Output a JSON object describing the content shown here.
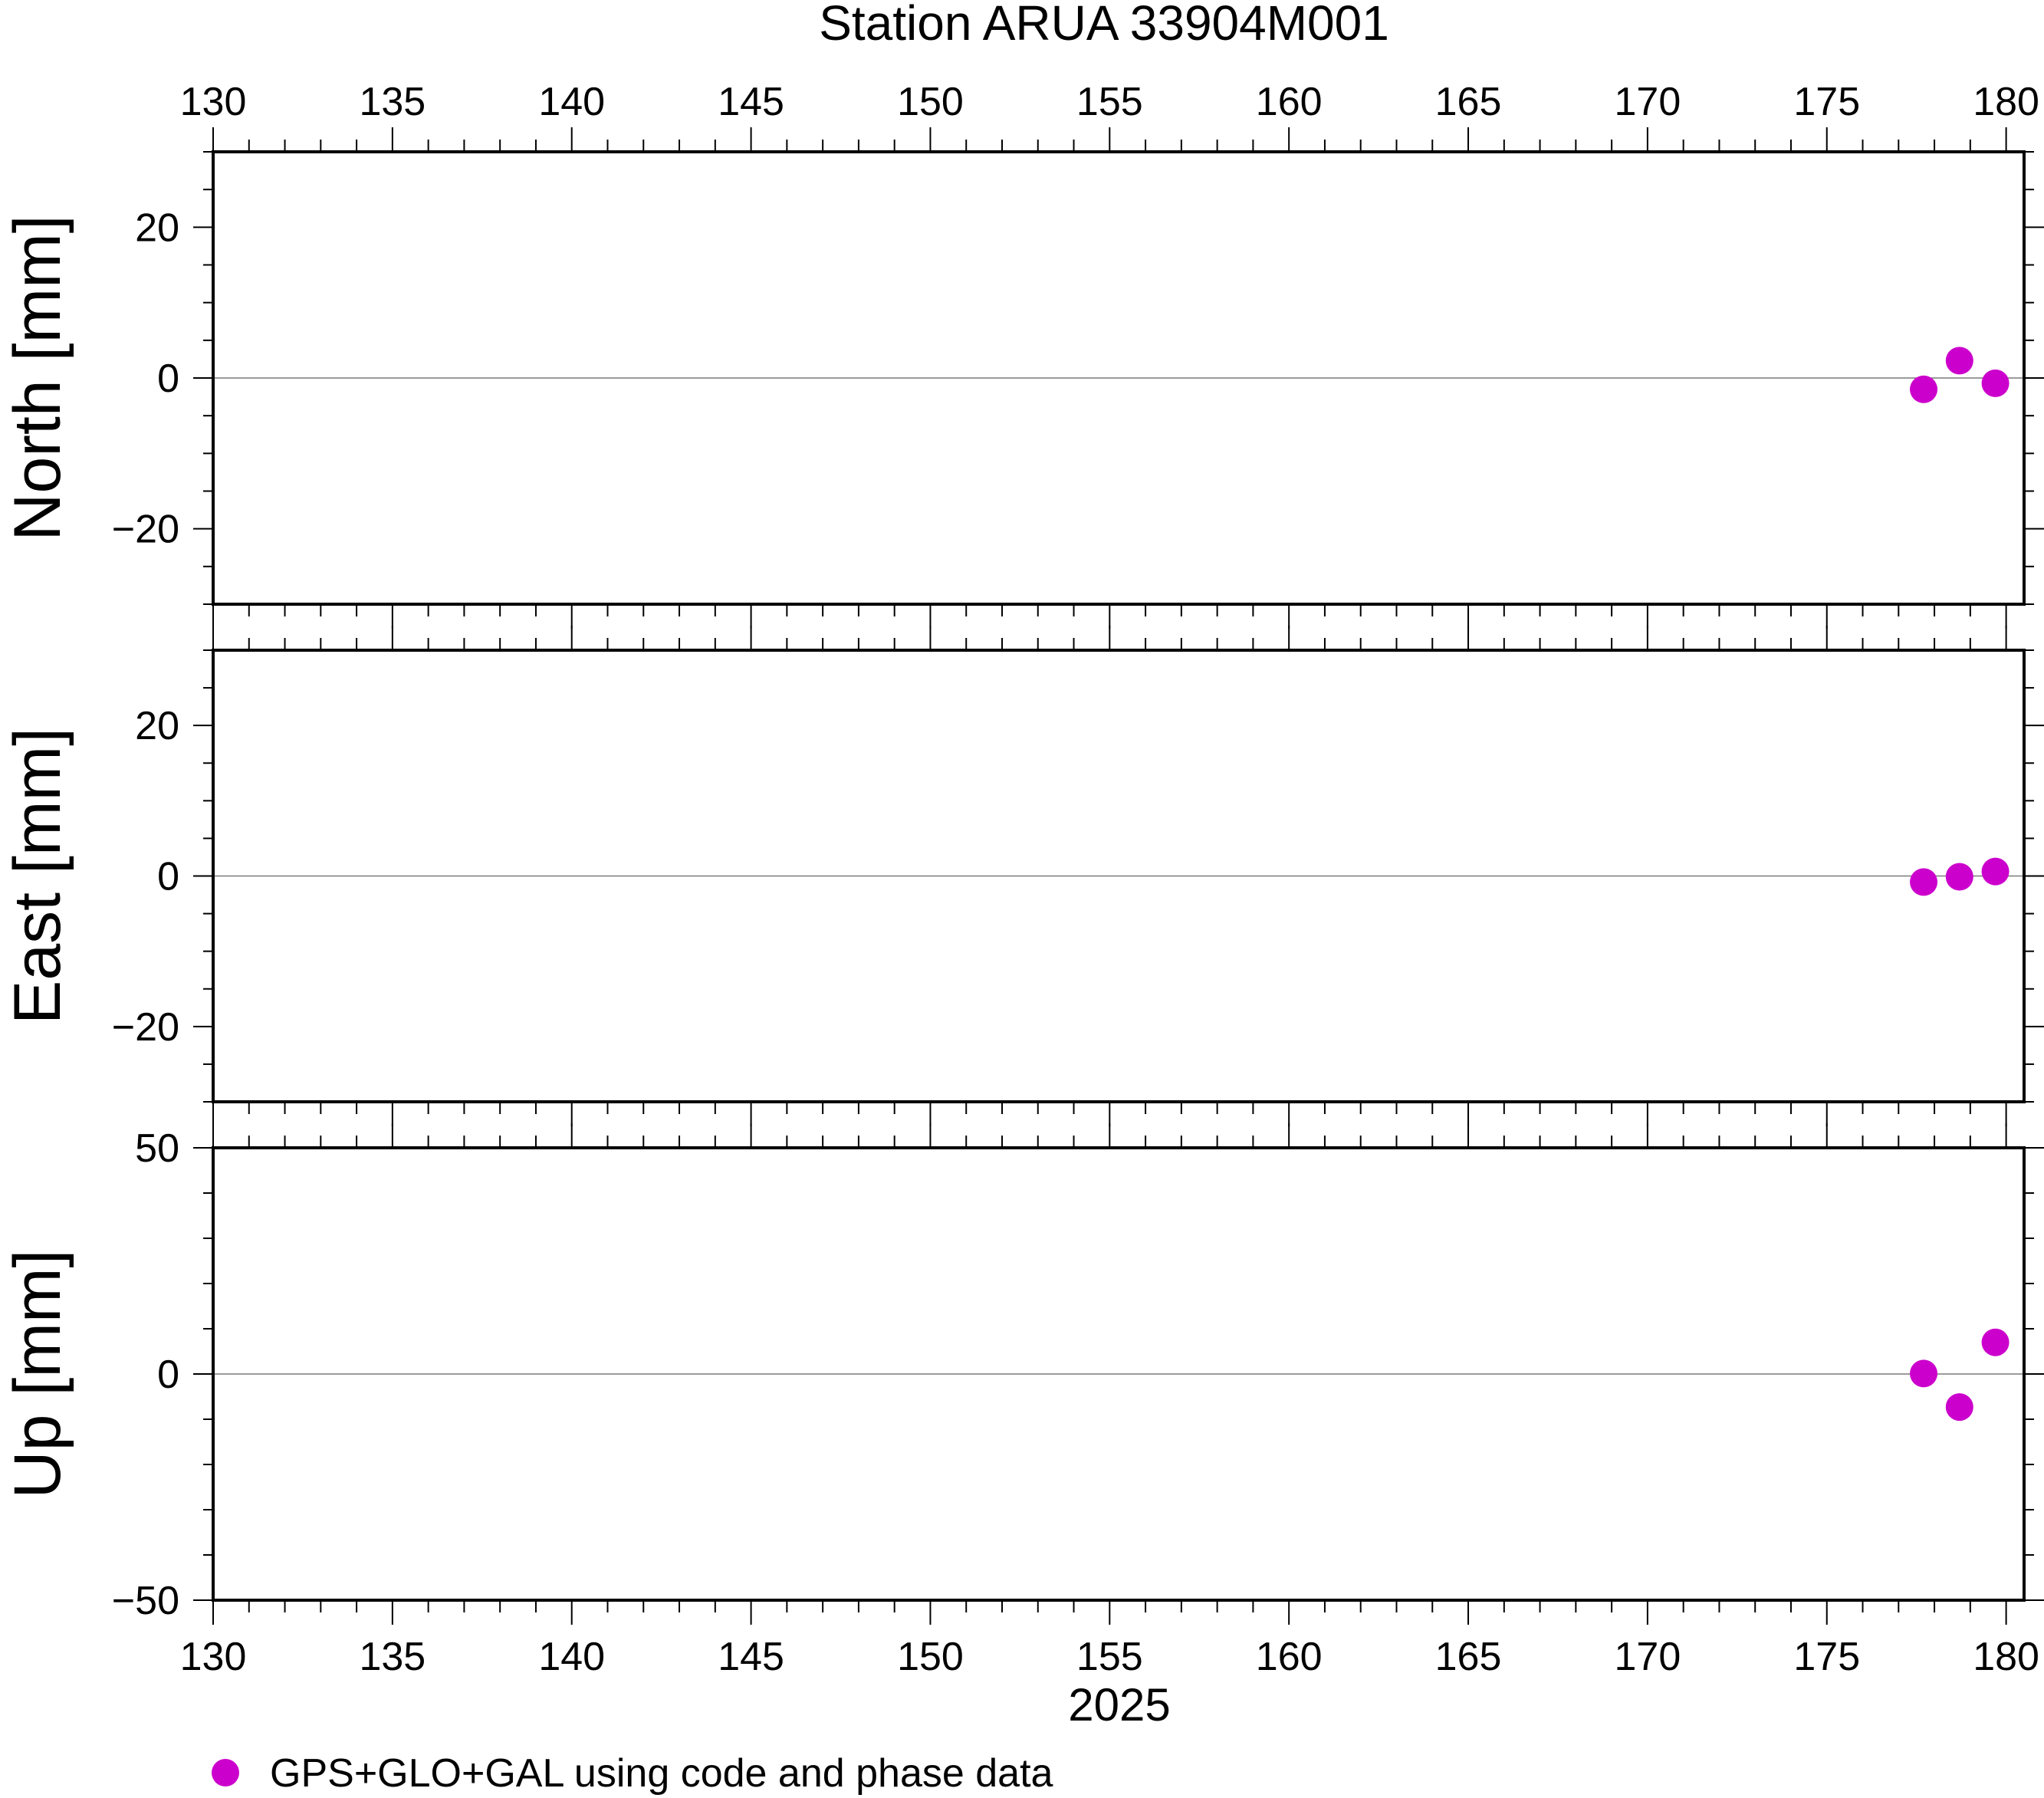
{
  "title": "Station ARUA 33904M001",
  "chart_data": {
    "type": "scatter",
    "title": "Station ARUA 33904M001",
    "xlabel": "2025",
    "xlim": [
      130,
      180.5
    ],
    "x_ticks": [
      130,
      135,
      140,
      145,
      150,
      155,
      160,
      165,
      170,
      175,
      180
    ],
    "x_tick_labels": [
      "130",
      "135",
      "140",
      "145",
      "150",
      "155",
      "160",
      "165",
      "170",
      "175",
      "180"
    ],
    "grid": false,
    "marker_color": "#cc00cc",
    "legend": {
      "placement": "bottom-left",
      "label": "GPS+GLO+GAL using code and phase data"
    },
    "panels": [
      {
        "name": "north",
        "ylabel": "North [mm]",
        "ylim": [
          -30,
          30
        ],
        "y_ticks": [
          20,
          0,
          -20
        ],
        "y_tick_labels": [
          "20",
          "0",
          "−20"
        ],
        "points": [
          {
            "x": 177.7,
            "y": -1.5
          },
          {
            "x": 178.7,
            "y": 2.3
          },
          {
            "x": 179.7,
            "y": -0.7
          }
        ]
      },
      {
        "name": "east",
        "ylabel": "East [mm]",
        "ylim": [
          -30,
          30
        ],
        "y_ticks": [
          20,
          0,
          -20
        ],
        "y_tick_labels": [
          "20",
          "0",
          "−20"
        ],
        "points": [
          {
            "x": 177.7,
            "y": -0.8
          },
          {
            "x": 178.7,
            "y": -0.1
          },
          {
            "x": 179.7,
            "y": 0.6
          }
        ]
      },
      {
        "name": "up",
        "ylabel": "Up [mm]",
        "ylim": [
          -50,
          50
        ],
        "y_ticks": [
          50,
          0,
          -50
        ],
        "y_tick_labels": [
          "50",
          "0",
          "−50"
        ],
        "points": [
          {
            "x": 177.7,
            "y": 0.1
          },
          {
            "x": 178.7,
            "y": -7.3
          },
          {
            "x": 179.7,
            "y": 7.0
          }
        ]
      }
    ]
  }
}
